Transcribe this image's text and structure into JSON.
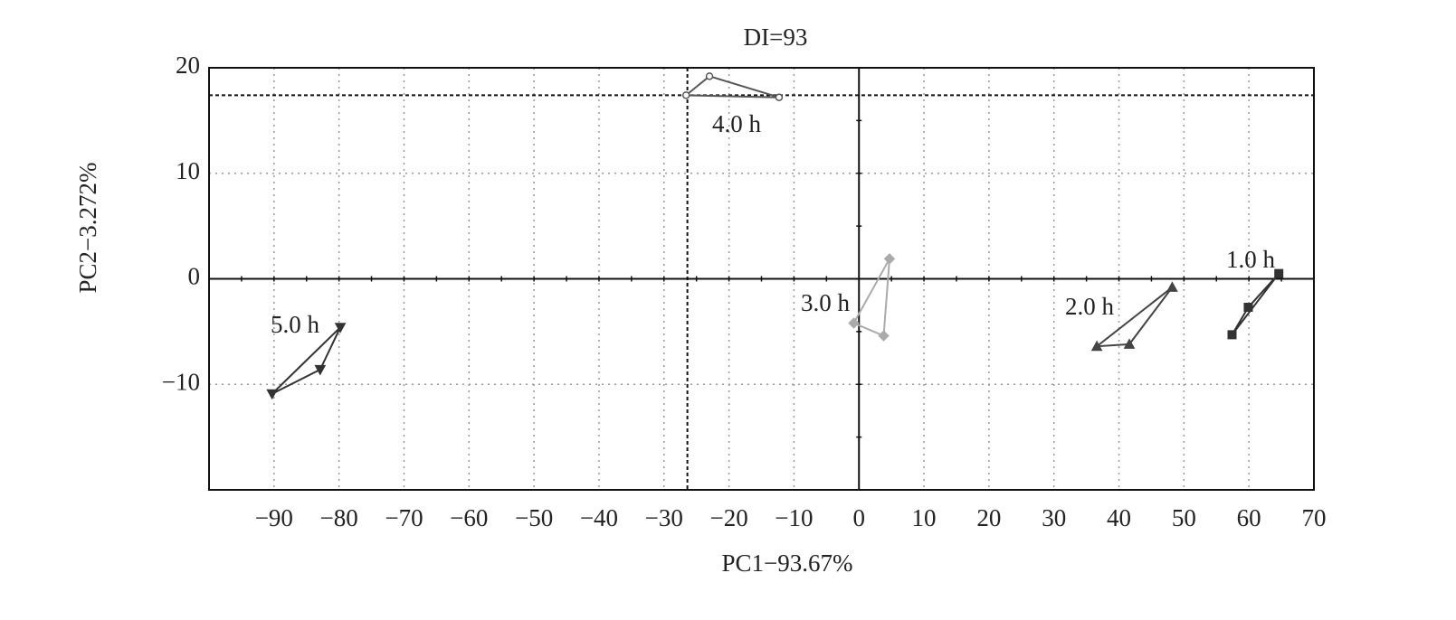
{
  "chart_data": {
    "type": "scatter",
    "title": "DI=93",
    "x_label": "PC1−93.67%",
    "y_label": "PC2−3.272%",
    "xlim": [
      -100,
      70
    ],
    "ylim": [
      -20,
      20
    ],
    "xticks": [
      {
        "value": -90,
        "label": "−90"
      },
      {
        "value": -80,
        "label": "−80"
      },
      {
        "value": -70,
        "label": "−70"
      },
      {
        "value": -60,
        "label": "−60"
      },
      {
        "value": -50,
        "label": "−50"
      },
      {
        "value": -40,
        "label": "−40"
      },
      {
        "value": -30,
        "label": "−30"
      },
      {
        "value": -20,
        "label": "−20"
      },
      {
        "value": -10,
        "label": "−10"
      },
      0,
      10,
      20,
      30,
      40,
      50,
      60,
      70
    ],
    "yticks": [
      {
        "value": -10,
        "label": "−10"
      },
      0,
      10,
      20
    ],
    "grid": true,
    "ref_lines": {
      "x": -26.4,
      "y": 17.4
    },
    "series": [
      {
        "name": "1.0 h",
        "color": "#333333",
        "marker": "square",
        "x": [
          64.6,
          59.9,
          57.4
        ],
        "y": [
          0.5,
          -2.7,
          -5.3
        ]
      },
      {
        "name": "2.0 h",
        "color": "#444444",
        "marker": "triangle",
        "x": [
          48.2,
          36.6,
          41.6
        ],
        "y": [
          -0.8,
          -6.4,
          -6.2
        ]
      },
      {
        "name": "3.0 h",
        "color": "#aaaaaa",
        "marker": "diamond",
        "x": [
          4.7,
          -0.8,
          3.8
        ],
        "y": [
          1.9,
          -4.2,
          -5.4
        ]
      },
      {
        "name": "4.0 h",
        "color": "#555555",
        "marker": "circle",
        "x": [
          -23,
          -12.3,
          -26.6
        ],
        "y": [
          19.2,
          17.2,
          17.4
        ]
      },
      {
        "name": "5.0 h",
        "color": "#333333",
        "marker": "down-triangle",
        "x": [
          -79.8,
          -82.9,
          -90.3
        ],
        "y": [
          -4.6,
          -8.6,
          -10.9
        ]
      }
    ]
  }
}
